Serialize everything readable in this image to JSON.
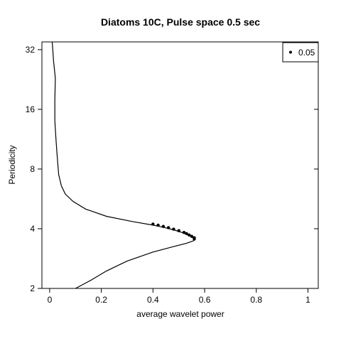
{
  "chart_data": {
    "type": "line",
    "title": "Diatoms 10C, Pulse space 0.5 sec",
    "xlabel": "average wavelet power",
    "ylabel": "Periodicity",
    "xlim": [
      -0.03,
      1.04
    ],
    "ylim": [
      2,
      35
    ],
    "y_scale": "log2",
    "x_ticks": [
      0,
      0.2,
      0.4,
      0.6,
      0.8,
      1
    ],
    "x_tick_labels": [
      "0",
      "0.2",
      "0.4",
      "0.6",
      "0.8",
      "1"
    ],
    "y_ticks": [
      2,
      4,
      8,
      16,
      32
    ],
    "y_tick_labels": [
      "2",
      "4",
      "8",
      "16",
      "32"
    ],
    "grid": false,
    "legend": {
      "position": "top-right",
      "entries": [
        {
          "label": "0.05",
          "marker": "dot"
        }
      ]
    },
    "series": [
      {
        "style": "line",
        "x": [
          0.1,
          0.16,
          0.22,
          0.3,
          0.4,
          0.48,
          0.53,
          0.558,
          0.56,
          0.55,
          0.52,
          0.48,
          0.44,
          0.4,
          0.32,
          0.22,
          0.14,
          0.09,
          0.06,
          0.045,
          0.035,
          0.03,
          0.025,
          0.02,
          0.02,
          0.022,
          0.015,
          0.01
        ],
        "y": [
          2.0,
          2.2,
          2.45,
          2.75,
          3.05,
          3.25,
          3.38,
          3.48,
          3.55,
          3.65,
          3.8,
          3.95,
          4.07,
          4.17,
          4.35,
          4.62,
          5.02,
          5.5,
          6.0,
          6.6,
          7.5,
          9.0,
          11.0,
          14.0,
          18.0,
          23.0,
          28.0,
          35.0
        ]
      },
      {
        "name": "0.05",
        "style": "points",
        "x": [
          0.4,
          0.42,
          0.44,
          0.46,
          0.48,
          0.5,
          0.52,
          0.53,
          0.54,
          0.55,
          0.56,
          0.56
        ],
        "y": [
          4.22,
          4.17,
          4.11,
          4.05,
          3.98,
          3.91,
          3.83,
          3.78,
          3.72,
          3.66,
          3.6,
          3.55
        ]
      }
    ]
  }
}
